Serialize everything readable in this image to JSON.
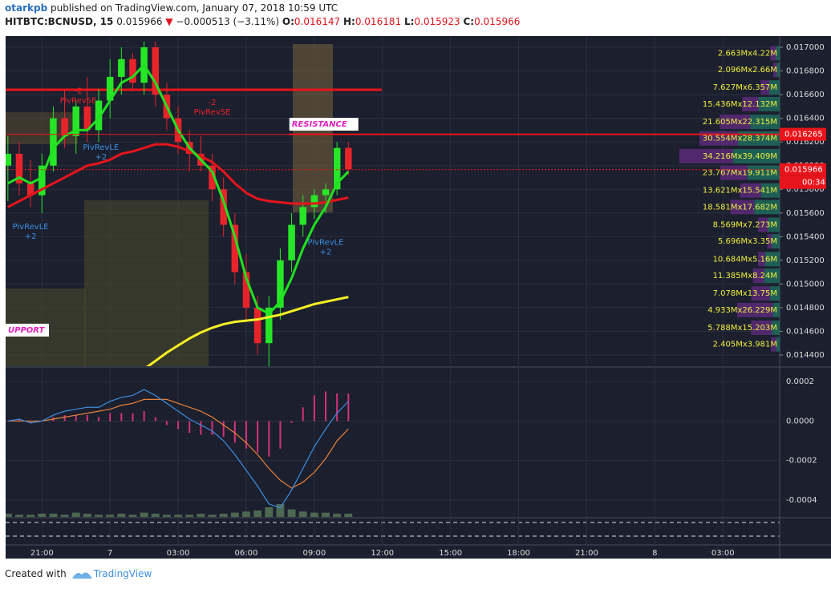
{
  "header": {
    "author": "otarkpb",
    "published": " published on TradingView.com, January 07, 2018 10:59 UTC",
    "symbol": "HITBTC:BCNUSD, 15",
    "last": "0.015966",
    "arrow": "▼",
    "change": "−0.000513 (−3.11%)",
    "o_label": "O:",
    "o": "0.016147",
    "h_label": "H:",
    "h": "0.016181",
    "l_label": "L:",
    "l": "0.015923",
    "c_label": "C:",
    "c": "0.015966"
  },
  "footer": {
    "created": "Created with",
    "brand": "TradingView"
  },
  "chart_data": {
    "type": "candlestick",
    "x": [
      19.5,
      20,
      20.5,
      21,
      21.5,
      22,
      22.5,
      23,
      23.5,
      24,
      24.5,
      25,
      25.5,
      26,
      26.5,
      27,
      27.5,
      28,
      28.5,
      29,
      29.5,
      30,
      30.5,
      31,
      31.5,
      32,
      32.5,
      33,
      33.5,
      34,
      34.5
    ],
    "open": [
      0.016,
      0.0161,
      0.01585,
      0.01575,
      0.016,
      0.0164,
      0.01625,
      0.0165,
      0.0163,
      0.01655,
      0.01675,
      0.0169,
      0.0167,
      0.017,
      0.0166,
      0.0164,
      0.0162,
      0.0161,
      0.016,
      0.0158,
      0.0155,
      0.0151,
      0.0148,
      0.0145,
      0.0148,
      0.0152,
      0.0155,
      0.01565,
      0.01575,
      0.0158,
      0.01615
    ],
    "high": [
      0.01625,
      0.0162,
      0.01605,
      0.0161,
      0.0165,
      0.01665,
      0.01655,
      0.01675,
      0.01665,
      0.0169,
      0.017,
      0.01695,
      0.01705,
      0.01705,
      0.0167,
      0.0165,
      0.0163,
      0.01625,
      0.0161,
      0.0159,
      0.0156,
      0.01525,
      0.0149,
      0.0149,
      0.0153,
      0.0156,
      0.01575,
      0.0158,
      0.01585,
      0.0162,
      0.0162
    ],
    "low": [
      0.0157,
      0.01575,
      0.01565,
      0.0156,
      0.01595,
      0.01615,
      0.0161,
      0.0162,
      0.0162,
      0.0164,
      0.0166,
      0.01665,
      0.0166,
      0.0165,
      0.0163,
      0.0161,
      0.01595,
      0.01595,
      0.0157,
      0.0154,
      0.015,
      0.0147,
      0.0144,
      0.0143,
      0.0147,
      0.0151,
      0.0154,
      0.01555,
      0.0156,
      0.01575,
      0.01592
    ],
    "close": [
      0.0161,
      0.01585,
      0.01575,
      0.016,
      0.0164,
      0.01625,
      0.0165,
      0.0163,
      0.01655,
      0.01675,
      0.0169,
      0.0167,
      0.017,
      0.0166,
      0.0164,
      0.0162,
      0.0161,
      0.016,
      0.0158,
      0.0155,
      0.0151,
      0.0148,
      0.0145,
      0.0148,
      0.0152,
      0.0155,
      0.01565,
      0.01575,
      0.0158,
      0.01615,
      0.01597
    ],
    "up_color": "#27e627",
    "down_color": "#e8242b",
    "series": [
      {
        "color": "#e8141b",
        "values": [
          0.01565,
          0.0157,
          0.01575,
          0.0158,
          0.01585,
          0.0159,
          0.01595,
          0.016,
          0.01602,
          0.01605,
          0.0161,
          0.01612,
          0.01615,
          0.01618,
          0.01618,
          0.01616,
          0.01612,
          0.01608,
          0.01603,
          0.01595,
          0.01585,
          0.01577,
          0.01572,
          0.0157,
          0.01569,
          0.01568,
          0.01568,
          0.01568,
          0.01569,
          0.01571,
          0.01573
        ]
      },
      {
        "color": "#1fe21f",
        "values": [
          0.01585,
          0.0159,
          0.01585,
          0.0159,
          0.01615,
          0.01625,
          0.0163,
          0.0163,
          0.0164,
          0.01655,
          0.0167,
          0.01675,
          0.01685,
          0.0167,
          0.0165,
          0.0163,
          0.01615,
          0.01605,
          0.01595,
          0.0157,
          0.0154,
          0.01505,
          0.0148,
          0.01475,
          0.01485,
          0.01505,
          0.0153,
          0.0155,
          0.01565,
          0.01585,
          0.01595
        ]
      },
      {
        "color": "#f5f024",
        "values": [
          null,
          null,
          null,
          null,
          null,
          null,
          null,
          null,
          null,
          null,
          null,
          null,
          0.01428,
          0.01435,
          0.01442,
          0.01448,
          0.01454,
          0.01459,
          0.01463,
          0.01466,
          0.01468,
          0.01469,
          0.0147,
          0.01472,
          0.01474,
          0.01477,
          0.0148,
          0.01483,
          0.01485,
          0.01487,
          0.01489
        ]
      }
    ],
    "xlim": [
      19.4,
      53.5
    ],
    "xticks": [
      {
        "value": 21,
        "label": "21:00"
      },
      {
        "value": 24,
        "label": "7"
      },
      {
        "value": 27,
        "label": "03:00"
      },
      {
        "value": 30,
        "label": "06:00"
      },
      {
        "value": 33,
        "label": "09:00"
      },
      {
        "value": 36,
        "label": "12:00"
      },
      {
        "value": 39,
        "label": "15:00"
      },
      {
        "value": 42,
        "label": "18:00"
      },
      {
        "value": 45,
        "label": "21:00"
      },
      {
        "value": 48,
        "label": "8"
      },
      {
        "value": 51,
        "label": "03:00"
      }
    ],
    "ylim": [
      0.014305,
      0.017095
    ],
    "yticks": [
      {
        "value": 0.0144,
        "label": "0.014400"
      },
      {
        "value": 0.0146,
        "label": "0.014600"
      },
      {
        "value": 0.0148,
        "label": "0.014800"
      },
      {
        "value": 0.015,
        "label": "0.015000"
      },
      {
        "value": 0.0152,
        "label": "0.015200"
      },
      {
        "value": 0.0154,
        "label": "0.015400"
      },
      {
        "value": 0.0156,
        "label": "0.015600"
      },
      {
        "value": 0.0158,
        "label": "0.015800"
      },
      {
        "value": 0.016,
        "label": "0.016000"
      },
      {
        "value": 0.0162,
        "label": "0.016200"
      },
      {
        "value": 0.0164,
        "label": "0.016400"
      },
      {
        "value": 0.0166,
        "label": "0.016600"
      },
      {
        "value": 0.0168,
        "label": "0.016800"
      },
      {
        "value": 0.017,
        "label": "0.017000"
      }
    ],
    "grid": true,
    "levels": [
      {
        "value": 0.016641,
        "x": [
          19.4,
          35.97
        ],
        "color": "#e8141b"
      },
      {
        "value": 0.016265,
        "x": [
          31.87,
          53.5
        ],
        "color": "#e8141b"
      }
    ],
    "price_labels": [
      {
        "value": 0.016265,
        "label": "0.016265",
        "color": "#e8141b"
      },
      {
        "value": 0.015966,
        "label": "0.015966",
        "color": "#e8141b"
      }
    ],
    "countdown": "00:34",
    "annotations": [
      {
        "text": "RESISTANCE",
        "x": 31.9,
        "price": 0.01635
      },
      {
        "text": "UPPORT",
        "x": 19.4,
        "price": 0.01461
      }
    ],
    "signals": [
      {
        "text": "PivRevLE",
        "count": "+2",
        "x": 20.5,
        "price": 0.01555,
        "side": "long"
      },
      {
        "text": "PivRevSE",
        "count": "-2",
        "x": 22.6,
        "price": 0.01655,
        "side": "short"
      },
      {
        "text": "PivRevLE",
        "count": "+2",
        "x": 23.6,
        "price": 0.01622,
        "side": "long"
      },
      {
        "text": "PivRevSE",
        "count": "-2",
        "x": 28.5,
        "price": 0.01645,
        "side": "short"
      },
      {
        "text": "PivRevLE",
        "count": "+2",
        "x": 33.5,
        "price": 0.01542,
        "side": "long"
      }
    ],
    "volume_profile": {
      "up_color": "#1e6b5c",
      "down_color": "#5b2a78",
      "label_color": "#f0f03c",
      "rows": [
        {
          "price": 0.01695,
          "up": 2.663,
          "down": 4.22,
          "label": "2.663Mx4.22M"
        },
        {
          "price": 0.01681,
          "up": 2.096,
          "down": 2.66,
          "label": "2.096Mx2.66M"
        },
        {
          "price": 0.01666,
          "up": 7.627,
          "down": 6.357,
          "label": "7.627Mx6.357M"
        },
        {
          "price": 0.01652,
          "up": 15.436,
          "down": 12.132,
          "label": "15.436Mx12.132M"
        },
        {
          "price": 0.01637,
          "up": 21.605,
          "down": 22.315,
          "label": "21.605Mx22.315M"
        },
        {
          "price": 0.01623,
          "up": 30.554,
          "down": 28.374,
          "label": "30.554Mx28.374M"
        },
        {
          "price": 0.01608,
          "up": 34.216,
          "down": 39.409,
          "label": "34.216Mx39.409M"
        },
        {
          "price": 0.01594,
          "up": 23.767,
          "down": 19.911,
          "label": "23.767Mx19.911M"
        },
        {
          "price": 0.01579,
          "up": 13.621,
          "down": 15.541,
          "label": "13.621Mx15.541M"
        },
        {
          "price": 0.01565,
          "up": 18.581,
          "down": 17.682,
          "label": "18.581Mx17.682M"
        },
        {
          "price": 0.0155,
          "up": 8.569,
          "down": 7.273,
          "label": "8.569Mx7.273M"
        },
        {
          "price": 0.01536,
          "up": 5.696,
          "down": 3.35,
          "label": "5.696Mx3.35M"
        },
        {
          "price": 0.01521,
          "up": 10.684,
          "down": 5.16,
          "label": "10.684Mx5.16M"
        },
        {
          "price": 0.01507,
          "up": 11.385,
          "down": 8.24,
          "label": "11.385Mx8.24M"
        },
        {
          "price": 0.01492,
          "up": 7.078,
          "down": 13.75,
          "label": "7.078Mx13.75M"
        },
        {
          "price": 0.01478,
          "up": 4.933,
          "down": 26.229,
          "label": "4.933Mx26.229M"
        },
        {
          "price": 0.01463,
          "up": 5.788,
          "down": 15.203,
          "label": "5.788Mx15.203M"
        },
        {
          "price": 0.01449,
          "up": 2.405,
          "down": 3.981,
          "label": "2.405Mx3.981M"
        }
      ]
    },
    "macd": {
      "ylim": [
        -0.000486,
        0.000266
      ],
      "yticks": [
        {
          "value": 0.0002,
          "label": "0.0002"
        },
        {
          "value": 0,
          "label": "0.0000"
        },
        {
          "value": -0.0002,
          "label": "-0.0002"
        },
        {
          "value": -0.0004,
          "label": "-0.0004"
        }
      ],
      "macd": {
        "color": "#3d8ee0",
        "values": [
          0,
          1e-05,
          -1e-05,
          0,
          3e-05,
          5e-05,
          6e-05,
          7e-05,
          7e-05,
          0.0001,
          0.00012,
          0.00013,
          0.00016,
          0.00013,
          9e-05,
          5e-05,
          1e-05,
          -2e-05,
          -5e-05,
          -0.0001,
          -0.00017,
          -0.00025,
          -0.00033,
          -0.00042,
          -0.00044,
          -0.00035,
          -0.00024,
          -0.00013,
          -4e-05,
          4e-05,
          0.0001
        ]
      },
      "signal": {
        "color": "#e8823a",
        "values": [
          0,
          0,
          0,
          0,
          1e-05,
          2e-05,
          3e-05,
          4e-05,
          5e-05,
          6e-05,
          8e-05,
          9e-05,
          0.00011,
          0.00011,
          0.00011,
          9e-05,
          7e-05,
          5e-05,
          2e-05,
          -2e-05,
          -6e-05,
          -0.00011,
          -0.00017,
          -0.00024,
          -0.0003,
          -0.00034,
          -0.00031,
          -0.00026,
          -0.00019,
          -0.0001,
          -4e-05
        ]
      },
      "histogram": {
        "color": "#d6317c",
        "values": [
          0,
          1e-05,
          -1e-05,
          0,
          2e-05,
          3e-05,
          3e-05,
          3e-05,
          2e-05,
          4e-05,
          4e-05,
          4e-05,
          5e-05,
          2e-05,
          -2e-05,
          -4e-05,
          -6e-05,
          -7e-05,
          -7e-05,
          -8e-05,
          -0.00011,
          -0.00014,
          -0.00016,
          -0.00018,
          -0.00014,
          -1e-05,
          7e-05,
          0.00013,
          0.00015,
          0.00014,
          0.00014
        ]
      }
    },
    "volume": {
      "color": "#5a7a5a",
      "values": [
        3,
        2,
        2,
        3,
        3,
        2,
        4,
        3,
        2,
        2,
        3,
        2,
        4,
        3,
        2,
        2,
        2,
        3,
        2,
        3,
        4,
        5,
        6,
        9,
        12,
        7,
        5,
        4,
        4,
        3,
        3
      ]
    }
  }
}
